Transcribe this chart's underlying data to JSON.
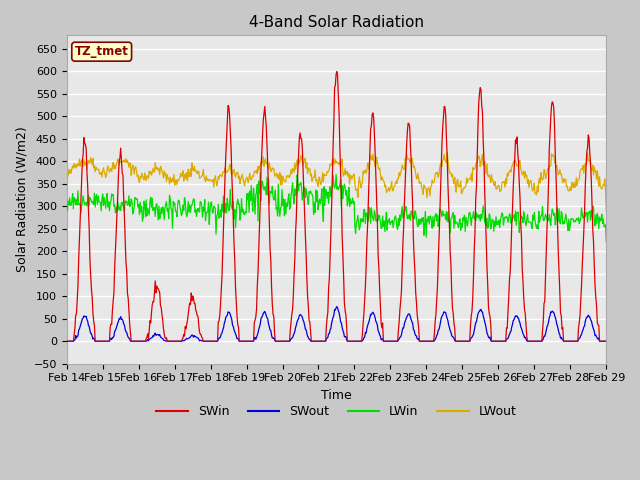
{
  "title": "4-Band Solar Radiation",
  "xlabel": "Time",
  "ylabel": "Solar Radiation (W/m2)",
  "ylim": [
    -50,
    680
  ],
  "background_color": "#c8c8c8",
  "plot_bg_color": "#e8e8e8",
  "grid_color": "#ffffff",
  "colors": {
    "SWin": "#dd0000",
    "SWout": "#0000dd",
    "LWin": "#00dd00",
    "LWout": "#ddaa00"
  },
  "annotation_text": "TZ_tmet",
  "annotation_bg": "#ffffcc",
  "annotation_border": "#880000",
  "x_tick_labels": [
    "Feb 14",
    "Feb 15",
    "Feb 16",
    "Feb 17",
    "Feb 18",
    "Feb 19",
    "Feb 20",
    "Feb 21",
    "Feb 22",
    "Feb 23",
    "Feb 24",
    "Feb 25",
    "Feb 26",
    "Feb 27",
    "Feb 28",
    "Feb 29"
  ],
  "yticks": [
    -50,
    0,
    50,
    100,
    150,
    200,
    250,
    300,
    350,
    400,
    450,
    500,
    550,
    600,
    650
  ],
  "n_days": 15
}
